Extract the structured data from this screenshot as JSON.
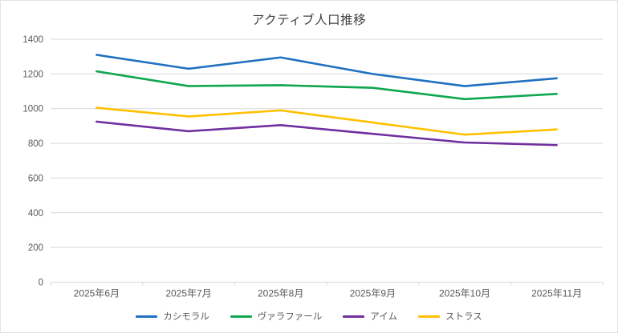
{
  "chart_data": {
    "type": "line",
    "title": "アクティブ人口推移",
    "categories": [
      "2025年6月",
      "2025年7月",
      "2025年8月",
      "2025年9月",
      "2025年10月",
      "2025年11月"
    ],
    "series": [
      {
        "name": "カシモラル",
        "color": "#1F70C1",
        "values": [
          1310,
          1230,
          1295,
          1200,
          1130,
          1175
        ]
      },
      {
        "name": "ヴァラファール",
        "color": "#0FA64F",
        "values": [
          1215,
          1130,
          1135,
          1120,
          1055,
          1085
        ]
      },
      {
        "name": "アイム",
        "color": "#7030A0",
        "values": [
          925,
          870,
          905,
          855,
          805,
          790
        ]
      },
      {
        "name": "ストラス",
        "color": "#FFC000",
        "values": [
          1005,
          955,
          990,
          920,
          850,
          880
        ]
      }
    ],
    "xlabel": "",
    "ylabel": "",
    "ylim": [
      0,
      1400
    ],
    "y_ticks": [
      0,
      200,
      400,
      600,
      800,
      1000,
      1200,
      1400
    ],
    "grid": "horizontal",
    "legend_position": "bottom"
  },
  "style": {
    "title_color": "#404040",
    "axis_text_color": "#595959",
    "gridline_color": "#D9D9D9",
    "tick_color": "#D9D9D9",
    "background": "#FFFFFF"
  }
}
